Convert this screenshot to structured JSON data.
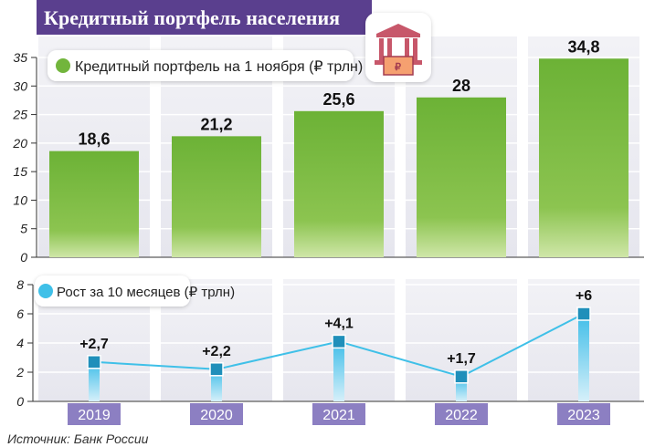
{
  "title": "Кредитный портфель населения",
  "source": "Источник: Банк России",
  "icon": "bank-building-icon",
  "colors": {
    "title_bg": "#5a3f8e",
    "bar": "#72b53c",
    "line": "#3fc0e8",
    "marker": "#1f8fba",
    "year_bg": "#8c7fc2"
  },
  "chart_data": [
    {
      "type": "bar",
      "categories": [
        "2019",
        "2020",
        "2021",
        "2022",
        "2023"
      ],
      "series": [
        {
          "name": "Кредитный портфель на 1 ноября (₽ трлн)",
          "values": [
            18.6,
            21.2,
            25.6,
            28,
            34.8
          ]
        }
      ],
      "data_labels": [
        "18,6",
        "21,2",
        "25,6",
        "28",
        "34,8"
      ],
      "yticks": [
        "0",
        "5",
        "10",
        "15",
        "20",
        "25",
        "30",
        "35"
      ],
      "ylim": [
        0,
        35
      ],
      "legend": "top-left"
    },
    {
      "type": "line",
      "categories": [
        "2019",
        "2020",
        "2021",
        "2022",
        "2023"
      ],
      "series": [
        {
          "name": "Рост за 10 месяцев (₽ трлн)",
          "values": [
            2.7,
            2.2,
            4.1,
            1.7,
            6
          ]
        }
      ],
      "data_labels": [
        "+2,7",
        "+2,2",
        "+4,1",
        "+1,7",
        "+6"
      ],
      "yticks": [
        "0",
        "2",
        "4",
        "6",
        "8"
      ],
      "ylim": [
        0,
        8
      ],
      "legend": "top-left"
    }
  ]
}
